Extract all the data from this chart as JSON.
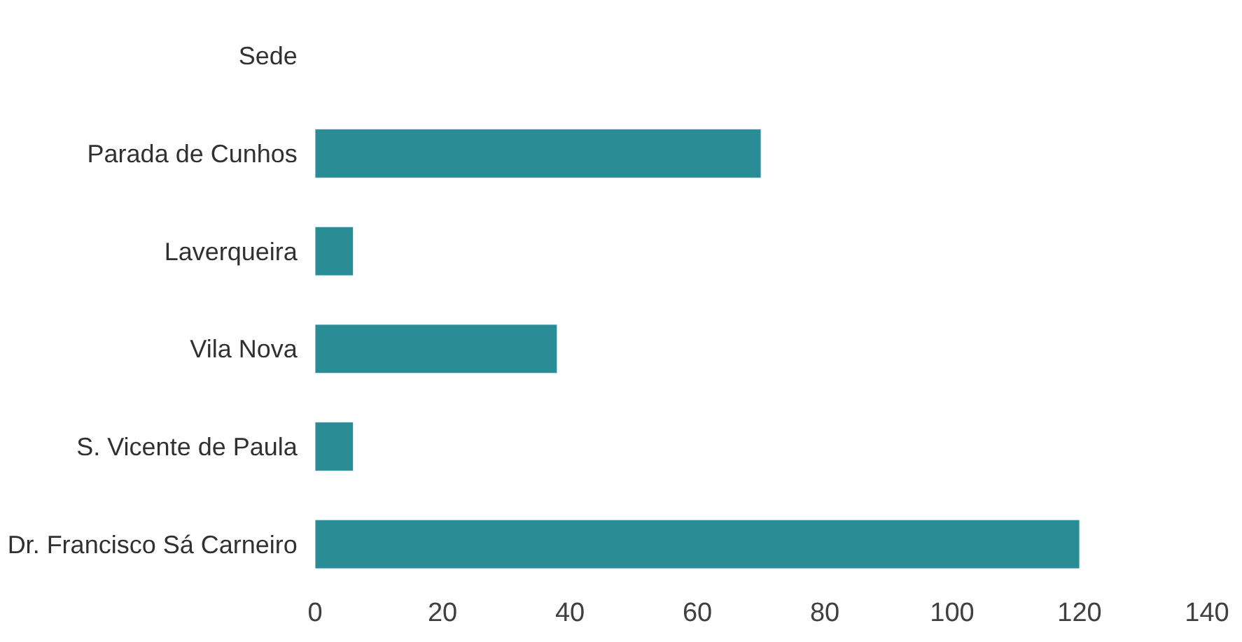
{
  "chart_data": {
    "type": "bar",
    "orientation": "horizontal",
    "categories": [
      "Sede",
      "Parada de Cunhos",
      "Laverqueira",
      "Vila Nova",
      "S. Vicente de Paula",
      "Dr. Francisco Sá Carneiro"
    ],
    "values": [
      null,
      70,
      6,
      38,
      6,
      120
    ],
    "color": "#2a8c94",
    "xlim": [
      0,
      140
    ],
    "xticks": [
      0,
      20,
      40,
      60,
      80,
      100,
      120,
      140
    ],
    "legend": false
  }
}
